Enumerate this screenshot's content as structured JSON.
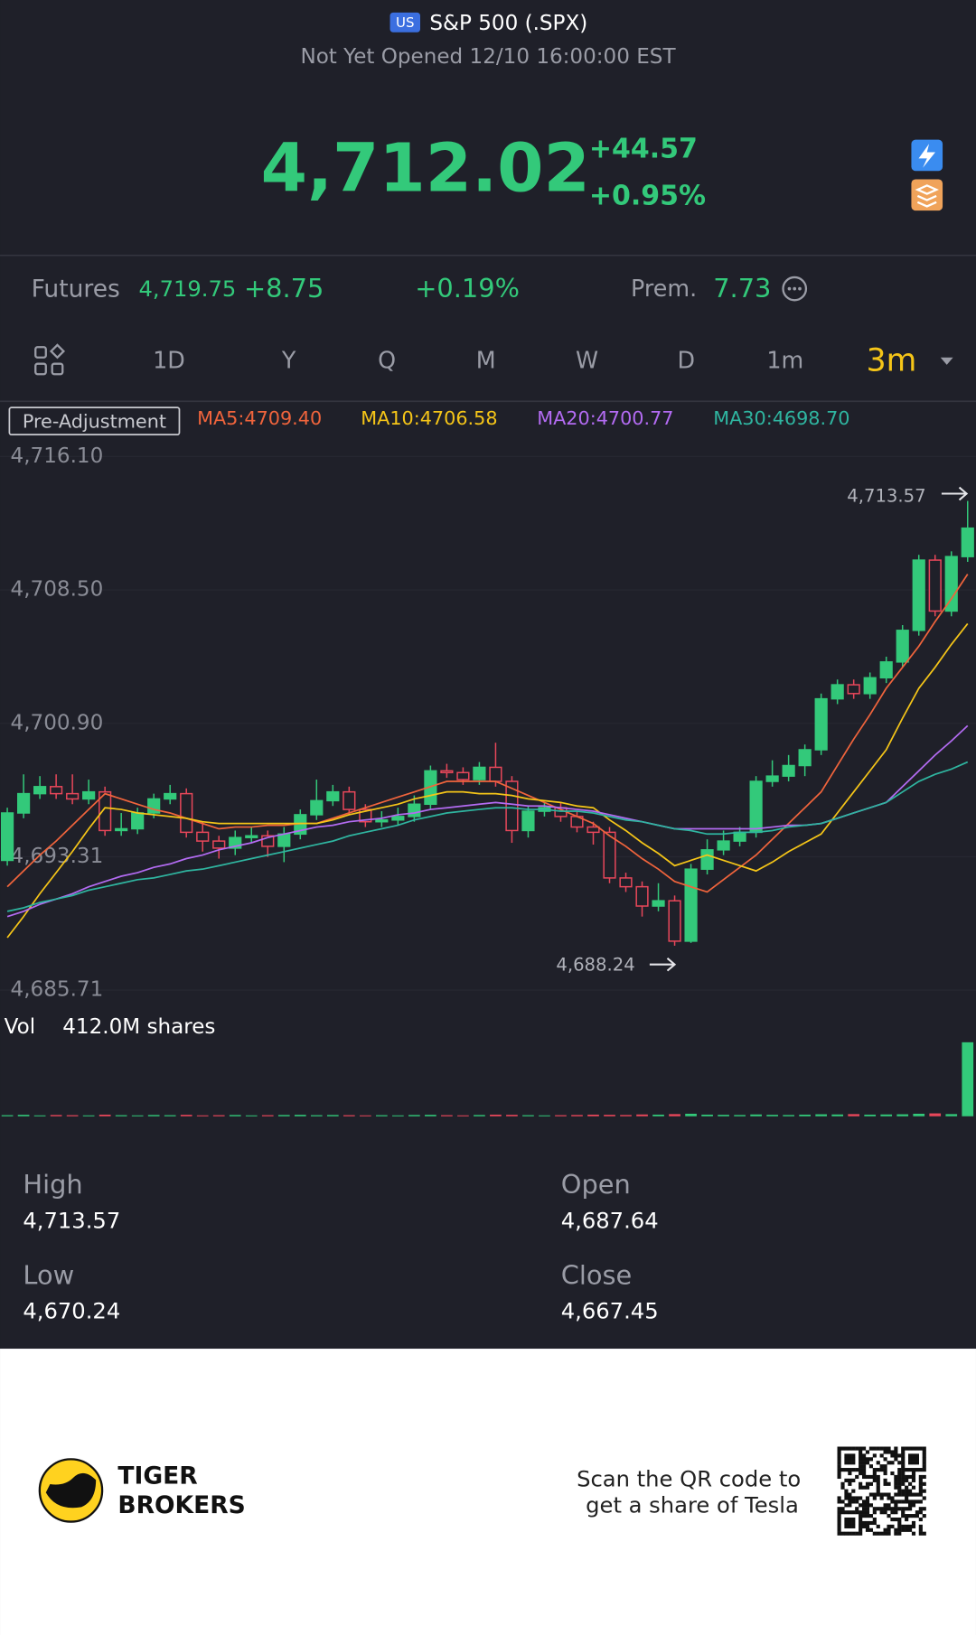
{
  "header": {
    "badge": "US",
    "title": "S&P 500 (.SPX)",
    "status": "Not Yet Opened 12/10 16:00:00 EST"
  },
  "quote": {
    "price": "4,712.02",
    "change": "+44.57",
    "change_pct": "+0.95%"
  },
  "futures": {
    "label": "Futures",
    "price": "4,719.75",
    "change": "+8.75",
    "change_pct": "+0.19%",
    "prem_label": "Prem.",
    "prem": "7.73"
  },
  "tabs": {
    "items": [
      "1D",
      "Y",
      "Q",
      "M",
      "W",
      "D",
      "1m",
      "3m"
    ],
    "selected": 7
  },
  "chart_data": {
    "type": "candlestick",
    "adjustment": "Pre-Adjustment",
    "up_color": "#33c97a",
    "down_color": "#e8475a",
    "ylim": [
      4685.71,
      4716.1
    ],
    "yticks": [
      {
        "value": 4716.1,
        "label": "4,716.10"
      },
      {
        "value": 4708.5,
        "label": "4,708.50"
      },
      {
        "value": 4700.9,
        "label": "4,700.90"
      },
      {
        "value": 4693.31,
        "label": "4,693.31"
      },
      {
        "value": 4685.71,
        "label": "4,685.71"
      }
    ],
    "high_marker": {
      "value": 4713.57,
      "label": "4,713.57"
    },
    "low_marker": {
      "value": 4688.24,
      "label": "4,688.24"
    },
    "open": [
      4693.1,
      4695.8,
      4696.9,
      4697.3,
      4696.9,
      4696.6,
      4697.0,
      4694.8,
      4694.9,
      4695.8,
      4696.6,
      4696.9,
      4694.7,
      4694.2,
      4693.8,
      4694.4,
      4694.5,
      4693.9,
      4694.6,
      4695.7,
      4696.5,
      4697.0,
      4696.0,
      4695.3,
      4695.4,
      4695.6,
      4696.3,
      4698.2,
      4698.1,
      4697.7,
      4698.4,
      4697.6,
      4694.8,
      4695.9,
      4696.1,
      4695.6,
      4695.0,
      4694.7,
      4692.1,
      4691.6,
      4690.5,
      4690.8,
      4688.5,
      4692.6,
      4693.7,
      4694.2,
      4694.7,
      4697.6,
      4697.9,
      4698.5,
      4699.4,
      4702.3,
      4703.1,
      4702.6,
      4703.5,
      4704.4,
      4706.2,
      4710.2,
      4707.3,
      4710.4
    ],
    "high": [
      4696.1,
      4698.0,
      4697.9,
      4698.0,
      4698.0,
      4697.7,
      4697.3,
      4695.8,
      4696.1,
      4696.9,
      4697.4,
      4697.2,
      4695.3,
      4694.5,
      4694.8,
      4695.0,
      4694.8,
      4695.0,
      4696.0,
      4697.7,
      4697.4,
      4697.3,
      4696.3,
      4695.9,
      4696.1,
      4696.8,
      4698.5,
      4698.6,
      4698.4,
      4698.7,
      4699.8,
      4697.9,
      4696.2,
      4696.4,
      4696.4,
      4695.9,
      4695.3,
      4695.0,
      4692.4,
      4691.9,
      4691.8,
      4691.1,
      4692.9,
      4694.3,
      4694.8,
      4695.0,
      4697.9,
      4698.8,
      4699.1,
      4699.7,
      4702.6,
      4703.4,
      4703.4,
      4703.8,
      4704.7,
      4706.5,
      4710.5,
      4710.5,
      4710.7,
      4713.57
    ],
    "low": [
      4692.8,
      4695.5,
      4696.6,
      4696.6,
      4696.3,
      4696.3,
      4694.5,
      4694.5,
      4694.6,
      4695.5,
      4696.3,
      4694.4,
      4693.6,
      4693.2,
      4693.4,
      4694.1,
      4693.3,
      4693.0,
      4694.3,
      4695.4,
      4696.2,
      4695.7,
      4695.0,
      4695.0,
      4695.1,
      4695.3,
      4696.0,
      4697.8,
      4697.4,
      4697.4,
      4697.3,
      4694.1,
      4694.4,
      4695.6,
      4695.3,
      4694.7,
      4694.0,
      4691.8,
      4691.3,
      4689.9,
      4690.2,
      4688.24,
      4688.4,
      4692.3,
      4693.4,
      4693.9,
      4694.4,
      4697.3,
      4697.6,
      4697.9,
      4699.1,
      4702.0,
      4702.3,
      4702.3,
      4703.2,
      4704.1,
      4705.9,
      4707.0,
      4707.0,
      4710.1
    ],
    "close": [
      4695.8,
      4696.9,
      4697.3,
      4696.9,
      4696.6,
      4697.0,
      4694.8,
      4694.9,
      4695.8,
      4696.6,
      4696.9,
      4694.7,
      4694.2,
      4693.8,
      4694.4,
      4694.5,
      4693.9,
      4694.6,
      4695.7,
      4696.5,
      4697.0,
      4696.0,
      4695.3,
      4695.4,
      4695.6,
      4696.3,
      4698.2,
      4698.1,
      4697.7,
      4698.4,
      4697.6,
      4694.8,
      4695.9,
      4696.1,
      4695.6,
      4695.0,
      4694.7,
      4692.1,
      4691.6,
      4690.5,
      4690.8,
      4688.5,
      4692.6,
      4693.7,
      4694.2,
      4694.7,
      4697.6,
      4697.9,
      4698.5,
      4699.4,
      4702.3,
      4703.1,
      4702.6,
      4703.5,
      4704.4,
      4706.2,
      4710.2,
      4707.3,
      4710.4,
      4712.02
    ],
    "series": [
      {
        "name": "MA5:4709.40",
        "color": "#f0643c",
        "values": [
          4691.6,
          4692.5,
          4693.4,
          4694.2,
          4695.1,
          4696.0,
          4696.9,
          4696.6,
          4696.3,
          4696.0,
          4695.8,
          4695.5,
          4695.2,
          4694.9,
          4695.0,
          4695.0,
          4695.1,
          4695.1,
          4695.2,
          4695.2,
          4695.5,
          4695.8,
          4696.1,
          4696.4,
          4696.7,
          4697.0,
          4697.3,
          4697.6,
          4697.6,
          4697.6,
          4697.6,
          4697.2,
          4696.8,
          4696.4,
          4696.0,
          4695.6,
          4695.2,
          4694.5,
          4693.9,
          4693.2,
          4692.6,
          4691.9,
          4691.6,
          4691.3,
          4692.0,
          4692.7,
          4693.4,
          4694.3,
          4695.2,
          4696.1,
          4697.0,
          4698.5,
          4700.0,
          4701.4,
          4702.9,
          4704.1,
          4705.3,
          4706.7,
          4708.0,
          4709.4
        ]
      },
      {
        "name": "MA10:4706.58",
        "color": "#f5c518",
        "values": [
          4688.7,
          4689.9,
          4691.2,
          4692.4,
          4693.6,
          4694.9,
          4696.1,
          4696.0,
          4695.8,
          4695.7,
          4695.6,
          4695.5,
          4695.3,
          4695.2,
          4695.2,
          4695.2,
          4695.2,
          4695.2,
          4695.2,
          4695.2,
          4695.4,
          4695.7,
          4695.9,
          4696.1,
          4696.3,
          4696.6,
          4696.8,
          4697.0,
          4697.0,
          4696.9,
          4696.9,
          4696.8,
          4696.6,
          4696.5,
          4696.4,
          4696.2,
          4696.1,
          4695.4,
          4694.8,
          4694.1,
          4693.5,
          4692.8,
          4693.1,
          4693.4,
          4693.1,
          4692.8,
          4692.5,
          4693.0,
          4693.6,
          4694.1,
          4694.6,
          4695.8,
          4697.0,
          4698.2,
          4699.4,
          4701.2,
          4702.9,
          4704.1,
          4705.4,
          4706.58
        ]
      },
      {
        "name": "MA20:4700.77",
        "color": "#b36bf2",
        "values": [
          4689.9,
          4690.2,
          4690.6,
          4690.9,
          4691.2,
          4691.6,
          4691.9,
          4692.2,
          4692.4,
          4692.7,
          4692.9,
          4693.2,
          4693.4,
          4693.7,
          4693.9,
          4694.1,
          4694.4,
          4694.6,
          4694.8,
          4695.0,
          4695.1,
          4695.3,
          4695.4,
          4695.5,
          4695.7,
          4695.8,
          4696.0,
          4696.1,
          4696.2,
          4696.3,
          4696.4,
          4696.3,
          4696.2,
          4696.2,
          4696.1,
          4696.0,
          4695.9,
          4695.7,
          4695.5,
          4695.3,
          4695.1,
          4694.9,
          4694.9,
          4694.9,
          4694.9,
          4694.9,
          4694.9,
          4695.0,
          4695.1,
          4695.1,
          4695.2,
          4695.5,
          4695.8,
          4696.1,
          4696.4,
          4697.3,
          4698.2,
          4699.1,
          4699.9,
          4700.77
        ]
      },
      {
        "name": "MA30:4698.70",
        "color": "#2fb5a0",
        "values": [
          4690.2,
          4690.4,
          4690.7,
          4690.9,
          4691.1,
          4691.4,
          4691.6,
          4691.8,
          4692.0,
          4692.1,
          4692.3,
          4692.5,
          4692.6,
          4692.8,
          4693.0,
          4693.2,
          4693.4,
          4693.6,
          4693.8,
          4694.0,
          4694.2,
          4694.5,
          4694.7,
          4694.9,
          4695.1,
          4695.4,
          4695.6,
          4695.8,
          4695.9,
          4696.0,
          4696.1,
          4696.1,
          4696.0,
          4696.0,
          4695.9,
          4695.9,
          4695.8,
          4695.6,
          4695.4,
          4695.3,
          4695.1,
          4694.9,
          4694.8,
          4694.6,
          4694.6,
          4694.7,
          4694.7,
          4694.8,
          4695.0,
          4695.1,
          4695.2,
          4695.5,
          4695.8,
          4696.1,
          4696.4,
          4697.0,
          4697.6,
          4698.0,
          4698.3,
          4698.7
        ]
      }
    ],
    "volume": {
      "label": "Vol",
      "value_label": "412.0M shares",
      "values": [
        6,
        8,
        5,
        7,
        6,
        5,
        9,
        6,
        5,
        7,
        6,
        8,
        5,
        6,
        7,
        5,
        6,
        7,
        8,
        6,
        7,
        6,
        5,
        6,
        5,
        7,
        8,
        6,
        5,
        7,
        9,
        8,
        6,
        5,
        6,
        7,
        9,
        8,
        7,
        10,
        9,
        12,
        14,
        9,
        8,
        7,
        10,
        8,
        7,
        9,
        11,
        10,
        12,
        9,
        10,
        11,
        14,
        16,
        12,
        412.0
      ]
    }
  },
  "stats": [
    {
      "label": "High",
      "value": "4,713.57"
    },
    {
      "label": "Open",
      "value": "4,687.64"
    },
    {
      "label": "Low",
      "value": "4,670.24"
    },
    {
      "label": "Close",
      "value": "4,667.45"
    }
  ],
  "footer": {
    "brand_1": "TIGER",
    "brand_2": "BROKERS",
    "qr_text_1": "Scan the QR code to",
    "qr_text_2": "get a share of Tesla"
  }
}
